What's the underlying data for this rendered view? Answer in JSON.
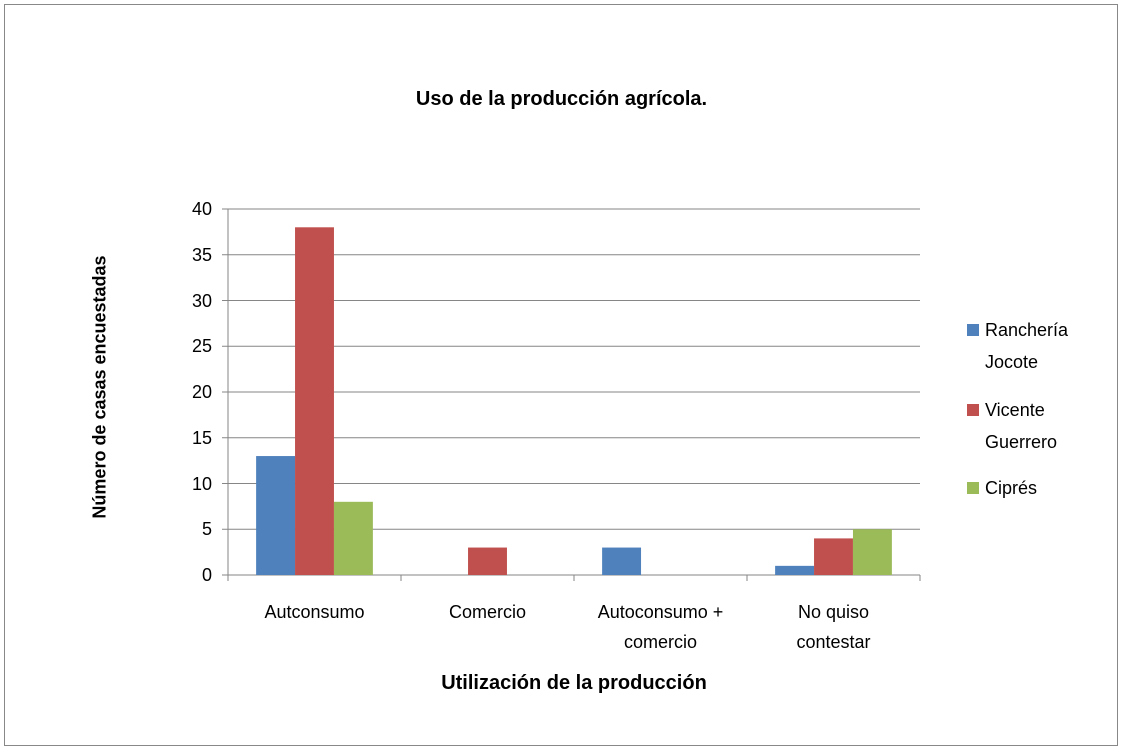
{
  "chart_data": {
    "type": "bar",
    "title": "Uso de la producción agrícola.",
    "x_label": "Utilización de la producción",
    "y_label": "Número de casas encuestadas",
    "categories": [
      "Autconsumo",
      "Comercio",
      "Autoconsumo + comercio",
      "No quiso contestar"
    ],
    "series": [
      {
        "name": "Ranchería Jocote",
        "color": "#4f81bd",
        "values": [
          13,
          0,
          3,
          1
        ]
      },
      {
        "name": "Vicente Guerrero",
        "color": "#c0504d",
        "values": [
          38,
          3,
          0,
          4
        ]
      },
      {
        "name": "Ciprés",
        "color": "#9bbb59",
        "values": [
          8,
          0,
          0,
          5
        ]
      }
    ],
    "ylim": [
      0,
      40
    ],
    "yticks": [
      0,
      5,
      10,
      15,
      20,
      25,
      30,
      35,
      40
    ],
    "grid": true,
    "legend": "right"
  }
}
